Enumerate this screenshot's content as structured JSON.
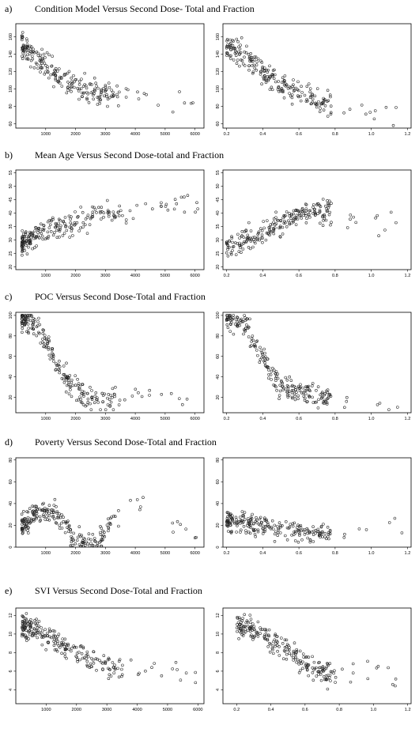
{
  "panels": [
    {
      "letter": "a)",
      "title": "Condition Model Versus Second Dose- Total and Fraction"
    },
    {
      "letter": "b)",
      "title": "Mean Age Versus Second Dose-total and Fraction"
    },
    {
      "letter": "c)",
      "title": "POC Versus Second Dose-Total and Fraction"
    },
    {
      "letter": "d)",
      "title": "Poverty Versus Second Dose-Total and Fraction"
    },
    {
      "letter": "e)",
      "title": "SVI Versus Second Dose-Total and Fraction"
    }
  ],
  "chart_data": [
    {
      "type": "scatter",
      "panel": "a)",
      "xlim": [
        0,
        6300
      ],
      "ylim": [
        55,
        175
      ],
      "x_ticks": [
        "1000",
        "2000",
        "3000",
        "4000",
        "5000",
        "6000"
      ],
      "y_ticks": [
        "60",
        "80",
        "100",
        "120",
        "140",
        "160"
      ],
      "x_tick_values": [
        1000,
        2000,
        3000,
        4000,
        5000,
        6000
      ],
      "y_tick_values": [
        60,
        80,
        100,
        120,
        140,
        160
      ],
      "trend": "decreasing",
      "xy_anchor": [
        [
          300,
          148
        ],
        [
          800,
          132
        ],
        [
          1500,
          112
        ],
        [
          2200,
          100
        ],
        [
          3000,
          95
        ],
        [
          4000,
          90
        ],
        [
          6000,
          88
        ]
      ],
      "x_range": [
        200,
        6100
      ],
      "y_spread": [
        60,
        172
      ]
    },
    {
      "type": "scatter",
      "panel": "a)",
      "xlim": [
        0.18,
        1.22
      ],
      "ylim": [
        55,
        175
      ],
      "x_ticks": [
        "0.2",
        "0.4",
        "0.6",
        "0.8",
        "1.0",
        "1.2"
      ],
      "y_ticks": [
        "60",
        "80",
        "100",
        "120",
        "140",
        "160"
      ],
      "x_tick_values": [
        0.2,
        0.4,
        0.6,
        0.8,
        1.0,
        1.2
      ],
      "y_tick_values": [
        60,
        80,
        100,
        120,
        140,
        160
      ],
      "trend": "decreasing",
      "xy_anchor": [
        [
          0.2,
          155
        ],
        [
          0.35,
          128
        ],
        [
          0.5,
          105
        ],
        [
          0.65,
          90
        ],
        [
          0.8,
          82
        ],
        [
          1.0,
          75
        ],
        [
          1.17,
          60
        ]
      ],
      "x_range": [
        0.2,
        1.17
      ],
      "y_spread": [
        58,
        170
      ]
    },
    {
      "type": "scatter",
      "panel": "b)",
      "xlim": [
        0,
        6300
      ],
      "ylim": [
        19,
        56
      ],
      "x_ticks": [
        "1000",
        "2000",
        "3000",
        "4000",
        "5000",
        "6000"
      ],
      "y_ticks": [
        "20",
        "25",
        "30",
        "35",
        "40",
        "45",
        "50",
        "55"
      ],
      "x_tick_values": [
        1000,
        2000,
        3000,
        4000,
        5000,
        6000
      ],
      "y_tick_values": [
        20,
        25,
        30,
        35,
        40,
        45,
        50,
        55
      ],
      "trend": "increasing",
      "xy_anchor": [
        [
          300,
          29
        ],
        [
          800,
          32
        ],
        [
          1500,
          35
        ],
        [
          2200,
          37
        ],
        [
          3000,
          40
        ],
        [
          4000,
          41
        ],
        [
          6000,
          43
        ]
      ],
      "x_range": [
        200,
        6100
      ],
      "y_spread": [
        20,
        54
      ]
    },
    {
      "type": "scatter",
      "panel": "b)",
      "xlim": [
        0.18,
        1.22
      ],
      "ylim": [
        19,
        56
      ],
      "x_ticks": [
        "0.2",
        "0.4",
        "0.6",
        "0.8",
        "1.0",
        "1.2"
      ],
      "y_ticks": [
        "20",
        "25",
        "30",
        "35",
        "40",
        "45",
        "50",
        "55"
      ],
      "x_tick_values": [
        0.2,
        0.4,
        0.6,
        0.8,
        1.0,
        1.2
      ],
      "y_tick_values": [
        20,
        25,
        30,
        35,
        40,
        45,
        50,
        55
      ],
      "trend": "increasing",
      "xy_anchor": [
        [
          0.2,
          28
        ],
        [
          0.35,
          31
        ],
        [
          0.5,
          36
        ],
        [
          0.65,
          41
        ],
        [
          0.8,
          41
        ],
        [
          1.0,
          33
        ],
        [
          1.17,
          36
        ]
      ],
      "x_range": [
        0.2,
        1.17
      ],
      "y_spread": [
        20,
        54
      ]
    },
    {
      "type": "scatter",
      "panel": "c)",
      "xlim": [
        0,
        6300
      ],
      "ylim": [
        5,
        103
      ],
      "x_ticks": [
        "1000",
        "2000",
        "3000",
        "4000",
        "5000",
        "6000"
      ],
      "y_ticks": [
        "20",
        "40",
        "60",
        "80",
        "100"
      ],
      "x_tick_values": [
        1000,
        2000,
        3000,
        4000,
        5000,
        6000
      ],
      "y_tick_values": [
        20,
        40,
        60,
        80,
        100
      ],
      "trend": "decreasing",
      "xy_anchor": [
        [
          300,
          96
        ],
        [
          800,
          88
        ],
        [
          1500,
          45
        ],
        [
          2200,
          22
        ],
        [
          3000,
          17
        ],
        [
          4000,
          20
        ],
        [
          6000,
          17
        ]
      ],
      "x_range": [
        200,
        6100
      ],
      "y_spread": [
        8,
        100
      ]
    },
    {
      "type": "scatter",
      "panel": "c)",
      "xlim": [
        0.18,
        1.22
      ],
      "ylim": [
        5,
        103
      ],
      "x_ticks": [
        "0.2",
        "0.4",
        "0.6",
        "0.8",
        "1.0",
        "1.2"
      ],
      "y_ticks": [
        "20",
        "40",
        "60",
        "80",
        "100"
      ],
      "x_tick_values": [
        0.2,
        0.4,
        0.6,
        0.8,
        1.0,
        1.2
      ],
      "y_tick_values": [
        20,
        40,
        60,
        80,
        100
      ],
      "trend": "decreasing",
      "xy_anchor": [
        [
          0.2,
          98
        ],
        [
          0.3,
          92
        ],
        [
          0.4,
          60
        ],
        [
          0.5,
          30
        ],
        [
          0.65,
          25
        ],
        [
          0.8,
          17
        ],
        [
          1.17,
          17
        ]
      ],
      "x_range": [
        0.2,
        1.17
      ],
      "y_spread": [
        8,
        100
      ]
    },
    {
      "type": "scatter",
      "panel": "d)",
      "xlim": [
        0,
        6300
      ],
      "ylim": [
        0,
        82
      ],
      "x_ticks": [
        "1000",
        "2000",
        "3000",
        "4000",
        "5000",
        "6000"
      ],
      "y_ticks": [
        "0",
        "20",
        "40",
        "60",
        "80"
      ],
      "x_tick_values": [
        1000,
        2000,
        3000,
        4000,
        5000,
        6000
      ],
      "y_tick_values": [
        0,
        20,
        40,
        60,
        80
      ],
      "trend": "U-shaped",
      "xy_anchor": [
        [
          300,
          22
        ],
        [
          800,
          30
        ],
        [
          1300,
          32
        ],
        [
          2000,
          8
        ],
        [
          2700,
          5
        ],
        [
          3800,
          45
        ],
        [
          6000,
          10
        ]
      ],
      "x_range": [
        200,
        6100
      ],
      "y_spread": [
        1,
        78
      ]
    },
    {
      "type": "scatter",
      "panel": "d)",
      "xlim": [
        0.18,
        1.22
      ],
      "ylim": [
        0,
        82
      ],
      "x_ticks": [
        "0.2",
        "0.4",
        "0.6",
        "0.8",
        "1.0",
        "1.2"
      ],
      "y_ticks": [
        "0",
        "20",
        "40",
        "60",
        "80"
      ],
      "x_tick_values": [
        0.2,
        0.4,
        0.6,
        0.8,
        1.0,
        1.2
      ],
      "y_tick_values": [
        0,
        20,
        40,
        60,
        80
      ],
      "trend": "weak",
      "xy_anchor": [
        [
          0.2,
          24
        ],
        [
          0.35,
          22
        ],
        [
          0.5,
          16
        ],
        [
          0.65,
          14
        ],
        [
          0.8,
          14
        ],
        [
          1.0,
          15
        ],
        [
          1.17,
          18
        ]
      ],
      "x_range": [
        0.2,
        1.17
      ],
      "y_spread": [
        1,
        78
      ]
    },
    {
      "type": "scatter",
      "panel": "e)",
      "xlim": [
        0,
        6200
      ],
      "ylim": [
        2.5,
        12.8
      ],
      "x_ticks": [
        "1000",
        "2000",
        "3000",
        "4000",
        "5000",
        "6000"
      ],
      "y_ticks": [
        "4",
        "6",
        "8",
        "10",
        "12"
      ],
      "x_tick_values": [
        1000,
        2000,
        3000,
        4000,
        5000,
        6000
      ],
      "y_tick_values": [
        4,
        6,
        8,
        10,
        12
      ],
      "trend": "decreasing",
      "xy_anchor": [
        [
          300,
          11
        ],
        [
          800,
          10.2
        ],
        [
          1500,
          8.8
        ],
        [
          2200,
          7.5
        ],
        [
          3000,
          6.5
        ],
        [
          4000,
          6
        ],
        [
          6000,
          6
        ]
      ],
      "x_range": [
        200,
        6100
      ],
      "y_spread": [
        3,
        12.5
      ]
    },
    {
      "type": "scatter",
      "panel": "e)",
      "xlim": [
        0.12,
        1.22
      ],
      "ylim": [
        2.5,
        12.8
      ],
      "x_ticks": [
        "0.2",
        "0.4",
        "0.6",
        "0.8",
        "1.0",
        "1.2"
      ],
      "y_ticks": [
        "4",
        "6",
        "8",
        "10",
        "12"
      ],
      "x_tick_values": [
        0.2,
        0.4,
        0.6,
        0.8,
        1.0,
        1.2
      ],
      "y_tick_values": [
        4,
        6,
        8,
        10,
        12
      ],
      "trend": "decreasing",
      "xy_anchor": [
        [
          0.2,
          11.2
        ],
        [
          0.35,
          10.2
        ],
        [
          0.5,
          8.3
        ],
        [
          0.65,
          6.2
        ],
        [
          0.8,
          5
        ],
        [
          1.0,
          6
        ],
        [
          1.17,
          4.5
        ]
      ],
      "x_range": [
        0.2,
        1.17
      ],
      "y_spread": [
        3,
        12.5
      ]
    }
  ]
}
